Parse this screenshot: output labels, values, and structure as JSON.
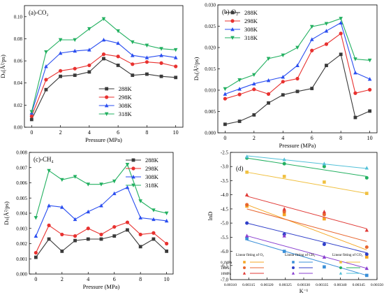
{
  "series_colors": [
    "#3a3a3a",
    "#e8312f",
    "#2a4ef0",
    "#22b060"
  ],
  "fit_colors": {
    "0.1MPa": "#f5a623",
    "1MPa": "#2f3fc9",
    "10MPa": "#e03a36",
    "O2_light": "#f0c040",
    "CH4_mid": "#5060d0",
    "CO2_light": "#52c0d8"
  },
  "chart_data": [
    {
      "type": "line",
      "panel_label": "(a)-CO₂",
      "xlabel": "Pressure (MPa)",
      "ylabel": "Dₛ(Å²/ps)",
      "xlim": [
        -0.5,
        10.5
      ],
      "ylim": [
        0.0,
        0.11
      ],
      "xticks": [
        0,
        2,
        4,
        6,
        8,
        10
      ],
      "yticks": [
        0.0,
        0.02,
        0.04,
        0.06,
        0.08,
        0.1
      ],
      "ytick_labels": [
        "0.00",
        "0.02",
        "0.04",
        "0.06",
        "0.08",
        "0.10"
      ],
      "legend_position": "bottom-right",
      "x": [
        0,
        1,
        2,
        3,
        4,
        5,
        6,
        7,
        8,
        9,
        10
      ],
      "series": [
        {
          "name": "288K",
          "marker": "square",
          "values": [
            0.007,
            0.034,
            0.046,
            0.047,
            0.05,
            0.062,
            0.056,
            0.047,
            0.048,
            0.046,
            0.045
          ]
        },
        {
          "name": "298K",
          "marker": "circle",
          "values": [
            0.01,
            0.043,
            0.051,
            0.053,
            0.056,
            0.066,
            0.064,
            0.057,
            0.059,
            0.058,
            0.055
          ]
        },
        {
          "name": "308K",
          "marker": "triangle",
          "values": [
            0.013,
            0.055,
            0.067,
            0.069,
            0.07,
            0.079,
            0.076,
            0.065,
            0.063,
            0.065,
            0.063
          ]
        },
        {
          "name": "318K",
          "marker": "tri-down",
          "values": [
            0.014,
            0.068,
            0.079,
            0.079,
            0.089,
            0.098,
            0.087,
            0.077,
            0.074,
            0.071,
            0.07
          ]
        }
      ]
    },
    {
      "type": "line",
      "panel_label": "(b)-O₂",
      "xlabel": "Pressure (MPa)",
      "ylabel": "Dₛ(Å²/ps)",
      "xlim": [
        -0.5,
        10.5
      ],
      "ylim": [
        0.0,
        0.03
      ],
      "xticks": [
        0,
        2,
        4,
        6,
        8,
        10
      ],
      "yticks": [
        0.0,
        0.005,
        0.01,
        0.015,
        0.02,
        0.025,
        0.03
      ],
      "ytick_labels": [
        "0.000",
        "0.005",
        "0.010",
        "0.015",
        "0.020",
        "0.025",
        "0.030"
      ],
      "legend_position": "top-left",
      "x": [
        0,
        1,
        2,
        3,
        4,
        5,
        6,
        7,
        8,
        9,
        10
      ],
      "series": [
        {
          "name": "288K",
          "marker": "square",
          "values": [
            0.002,
            0.0027,
            0.0042,
            0.007,
            0.0089,
            0.0097,
            0.0104,
            0.0158,
            0.0184,
            0.0036,
            0.0051
          ]
        },
        {
          "name": "298K",
          "marker": "circle",
          "values": [
            0.008,
            0.009,
            0.0102,
            0.0091,
            0.012,
            0.0127,
            0.0193,
            0.0208,
            0.0233,
            0.0093,
            0.0101
          ]
        },
        {
          "name": "308K",
          "marker": "triangle",
          "values": [
            0.0091,
            0.0103,
            0.0115,
            0.0123,
            0.0131,
            0.0158,
            0.0219,
            0.0239,
            0.0258,
            0.0141,
            0.0126
          ]
        },
        {
          "name": "318K",
          "marker": "tri-down",
          "values": [
            0.0103,
            0.0124,
            0.0136,
            0.0174,
            0.0182,
            0.02,
            0.0249,
            0.0256,
            0.0268,
            0.0173,
            0.017
          ]
        }
      ]
    },
    {
      "type": "line",
      "panel_label": "(c)-CH₄",
      "xlabel": "Pressure (MPa)",
      "ylabel": "Dₛ(Å²/ps)",
      "xlim": [
        -0.5,
        10.5
      ],
      "ylim": [
        0.0,
        0.008
      ],
      "xticks": [
        0,
        2,
        4,
        6,
        8,
        10
      ],
      "yticks": [
        0.0,
        0.001,
        0.002,
        0.003,
        0.004,
        0.005,
        0.006,
        0.007,
        0.008
      ],
      "ytick_labels": [
        "0.000",
        "0.001",
        "0.002",
        "0.003",
        "0.004",
        "0.005",
        "0.006",
        "0.007",
        "0.008"
      ],
      "legend_position": "top-right",
      "x": [
        0,
        1,
        2,
        3,
        4,
        5,
        6,
        7,
        8,
        9,
        10
      ],
      "series": [
        {
          "name": "288K",
          "marker": "square",
          "values": [
            0.0011,
            0.0023,
            0.0015,
            0.0022,
            0.0023,
            0.0023,
            0.0025,
            0.0029,
            0.0018,
            0.0023,
            0.0015
          ]
        },
        {
          "name": "298K",
          "marker": "circle",
          "values": [
            0.0014,
            0.0032,
            0.0026,
            0.0025,
            0.003,
            0.0026,
            0.0031,
            0.0034,
            0.0026,
            0.0027,
            0.002
          ]
        },
        {
          "name": "308K",
          "marker": "triangle",
          "values": [
            0.0025,
            0.0045,
            0.0044,
            0.0036,
            0.0041,
            0.0045,
            0.0053,
            0.0057,
            0.0037,
            0.0036,
            0.0035
          ]
        },
        {
          "name": "318K",
          "marker": "tri-down",
          "values": [
            0.0037,
            0.0068,
            0.0062,
            0.0064,
            0.0059,
            0.0059,
            0.0061,
            0.0072,
            0.0048,
            0.0042,
            0.004
          ]
        }
      ]
    },
    {
      "type": "scatter",
      "panel_label": "(d)",
      "xlabel": "K⁻¹",
      "ylabel": "lnD",
      "xlim": [
        0.0031,
        0.0035
      ],
      "ylim": [
        -7.0,
        -2.5
      ],
      "xticks": [
        0.0031,
        0.00315,
        0.0032,
        0.00325,
        0.0033,
        0.00335,
        0.0034,
        0.00345,
        0.0035
      ],
      "xtick_labels": [
        "0.00310",
        "0.00315",
        "0.00320",
        "0.00325",
        "0.00330",
        "0.00335",
        "0.00340",
        "0.00345",
        "0.00350"
      ],
      "yticks": [
        -7.0,
        -6.5,
        -6.0,
        -5.5,
        -5.0,
        -4.5,
        -4.0,
        -3.5,
        -3.0,
        -2.5
      ],
      "ytick_labels": [
        "-7.0",
        "-6.5",
        "-6.0",
        "-5.5",
        "-5.0",
        "-4.5",
        "-4.0",
        "-3.5",
        "-3.0",
        "-2.5"
      ],
      "legend": {
        "headers": [
          "Linear fitting of O₂",
          "Linear fitting of CH₄",
          "Linear fitting of CO₂"
        ],
        "rows": [
          "0.1MPa",
          "1MPa",
          "10MPa"
        ]
      },
      "x": [
        0.003145,
        0.003247,
        0.003356,
        0.003472
      ],
      "series": [
        {
          "name": "CO2 0.1MPa",
          "marker": "square",
          "color": "#f0c040",
          "values": [
            -3.2,
            -3.35,
            -3.55,
            -3.95
          ],
          "fit": [
            -3.2,
            -3.95
          ]
        },
        {
          "name": "CO2 1MPa",
          "marker": "circle",
          "color": "#22b060",
          "values": [
            -2.7,
            -2.9,
            -3.0,
            -3.4
          ],
          "fit": [
            -2.7,
            -3.35
          ]
        },
        {
          "name": "CO2 10MPa",
          "marker": "triangle",
          "color": "#52c0d8",
          "values": [
            -2.65,
            -2.75,
            -2.9,
            -3.05
          ],
          "fit": [
            -2.62,
            -3.07
          ]
        },
        {
          "name": "O2 0.1MPa",
          "marker": "square",
          "color": "#f5a623",
          "values": [
            -4.4,
            -4.7,
            -4.85,
            -6.2
          ],
          "fit": [
            -4.35,
            -5.95
          ]
        },
        {
          "name": "O2 1MPa",
          "marker": "circle",
          "color": "#e8662f",
          "values": [
            -4.35,
            -4.6,
            -4.7,
            -5.85
          ],
          "fit": [
            -4.5,
            -5.65
          ]
        },
        {
          "name": "O2 10MPa",
          "marker": "triangle",
          "color": "#e03a36",
          "values": [
            -4.0,
            -4.5,
            -4.6,
            -5.25
          ],
          "fit": [
            -4.05,
            -5.2
          ]
        },
        {
          "name": "CH4 0.1MPa",
          "marker": "square",
          "color": "#3a8fd8",
          "values": [
            -5.55,
            -6.0,
            -6.55,
            -6.85
          ],
          "fit": [
            -5.6,
            -6.85
          ]
        },
        {
          "name": "CH4 1MPa",
          "marker": "circle",
          "color": "#2f3fc9",
          "values": [
            -5.0,
            -5.4,
            -5.75,
            -6.1
          ],
          "fit": [
            -5.0,
            -6.05
          ]
        },
        {
          "name": "CH4 10MPa",
          "marker": "triangle",
          "color": "#8a3fd0",
          "values": [
            -5.45,
            -5.45,
            -6.2,
            -6.6
          ],
          "fit": [
            -5.45,
            -6.6
          ]
        }
      ]
    }
  ]
}
